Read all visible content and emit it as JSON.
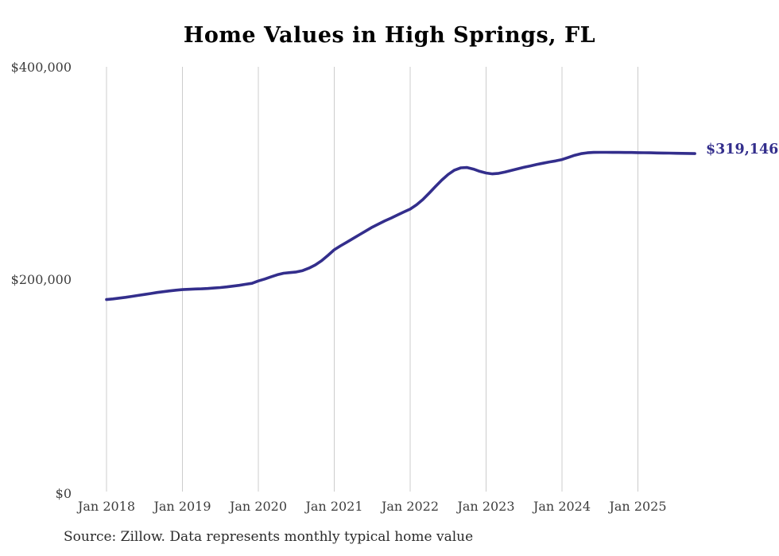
{
  "page": {
    "background": "#ffffff"
  },
  "chart_data": {
    "type": "line",
    "title": "Home Values in High Springs, FL",
    "source_note": "Source: Zillow. Data represents monthly typical home value",
    "end_label": "$319,146",
    "end_value": 319146,
    "x_tick_labels": [
      "Jan 2018",
      "Jan 2019",
      "Jan 2020",
      "Jan 2021",
      "Jan 2022",
      "Jan 2023",
      "Jan 2024",
      "Jan 2025"
    ],
    "y_tick_labels": [
      "$0",
      "$200,000",
      "$400,000"
    ],
    "ylim": [
      0,
      400000
    ],
    "x_tick_month_interval": 12,
    "grid": "vertical",
    "legend_position": "none",
    "line_color": "#332e8c",
    "grid_color": "#cccccc",
    "axis_text_color": "#3d3d3d",
    "months": [
      "2018-01",
      "2018-02",
      "2018-03",
      "2018-04",
      "2018-05",
      "2018-06",
      "2018-07",
      "2018-08",
      "2018-09",
      "2018-10",
      "2018-11",
      "2018-12",
      "2019-01",
      "2019-02",
      "2019-03",
      "2019-04",
      "2019-05",
      "2019-06",
      "2019-07",
      "2019-08",
      "2019-09",
      "2019-10",
      "2019-11",
      "2019-12",
      "2020-01",
      "2020-02",
      "2020-03",
      "2020-04",
      "2020-05",
      "2020-06",
      "2020-07",
      "2020-08",
      "2020-09",
      "2020-10",
      "2020-11",
      "2020-12",
      "2021-01",
      "2021-02",
      "2021-03",
      "2021-04",
      "2021-05",
      "2021-06",
      "2021-07",
      "2021-08",
      "2021-09",
      "2021-10",
      "2021-11",
      "2021-12",
      "2022-01",
      "2022-02",
      "2022-03",
      "2022-04",
      "2022-05",
      "2022-06",
      "2022-07",
      "2022-08",
      "2022-09",
      "2022-10",
      "2022-11",
      "2022-12",
      "2023-01",
      "2023-02",
      "2023-03",
      "2023-04",
      "2023-05",
      "2023-06",
      "2023-07",
      "2023-08",
      "2023-09",
      "2023-10",
      "2023-11",
      "2023-12",
      "2024-01",
      "2024-02",
      "2024-03",
      "2024-04",
      "2024-05",
      "2024-06",
      "2024-07",
      "2024-08",
      "2024-09",
      "2024-10",
      "2024-11",
      "2024-12",
      "2025-01",
      "2025-02",
      "2025-03",
      "2025-04",
      "2025-05",
      "2025-06",
      "2025-07",
      "2025-08",
      "2025-09",
      "2025-10"
    ],
    "series": [
      {
        "name": "Typical home value (monthly)",
        "values": [
          182000,
          182600,
          183300,
          184100,
          185000,
          185900,
          186800,
          187700,
          188600,
          189400,
          190100,
          190800,
          191300,
          191600,
          191900,
          192100,
          192400,
          192800,
          193300,
          193900,
          194600,
          195400,
          196300,
          197200,
          199500,
          201300,
          203300,
          205300,
          206700,
          207300,
          207900,
          209200,
          211500,
          214500,
          218500,
          223500,
          228800,
          232500,
          236000,
          239500,
          243000,
          246500,
          250000,
          253000,
          256000,
          258600,
          261500,
          264300,
          267000,
          271000,
          276000,
          282000,
          288200,
          294300,
          299600,
          303600,
          305800,
          306100,
          304600,
          302500,
          300900,
          300100,
          300600,
          301900,
          303300,
          304900,
          306300,
          307600,
          308900,
          310100,
          311300,
          312300,
          313600,
          315600,
          317600,
          319100,
          319900,
          320300,
          320400,
          320400,
          320300,
          320300,
          320200,
          320200,
          320100,
          320000,
          319900,
          319800,
          319700,
          319600,
          319500,
          319400,
          319300,
          319146
        ]
      }
    ]
  }
}
